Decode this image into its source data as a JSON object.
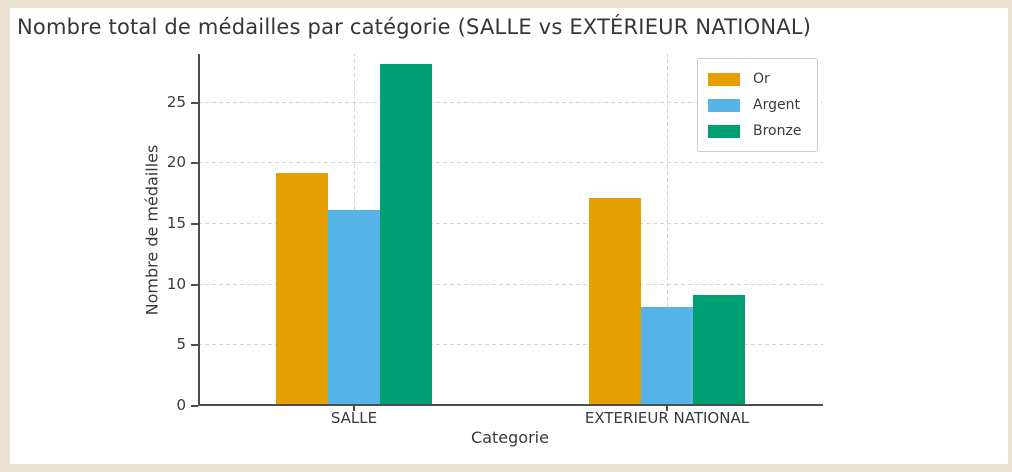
{
  "chart_data": {
    "type": "bar",
    "title": "Nombre total de médailles par catégorie (SALLE vs EXTÉRIEUR NATIONAL)",
    "xlabel": "Categorie",
    "ylabel": "Nombre de médailles",
    "categories": [
      "SALLE",
      "EXTERIEUR NATIONAL"
    ],
    "series": [
      {
        "name": "Or",
        "color": "#E69F00",
        "values": [
          19,
          17
        ]
      },
      {
        "name": "Argent",
        "color": "#56B4E9",
        "values": [
          16,
          8
        ]
      },
      {
        "name": "Bronze",
        "color": "#009E73",
        "values": [
          28,
          9
        ]
      }
    ],
    "ylim": [
      0,
      29
    ],
    "yticks": [
      0,
      5,
      10,
      15,
      20,
      25
    ],
    "grid": true,
    "legend_position": "upper right",
    "legend_entries": [
      "Or",
      "Argent",
      "Bronze"
    ]
  },
  "colors": {
    "page_background": "#ECE3D3",
    "panel_background": "#ffffff",
    "axis": "#4d4d4d",
    "grid": "#d6d6d6",
    "text": "#3a3a3a"
  }
}
